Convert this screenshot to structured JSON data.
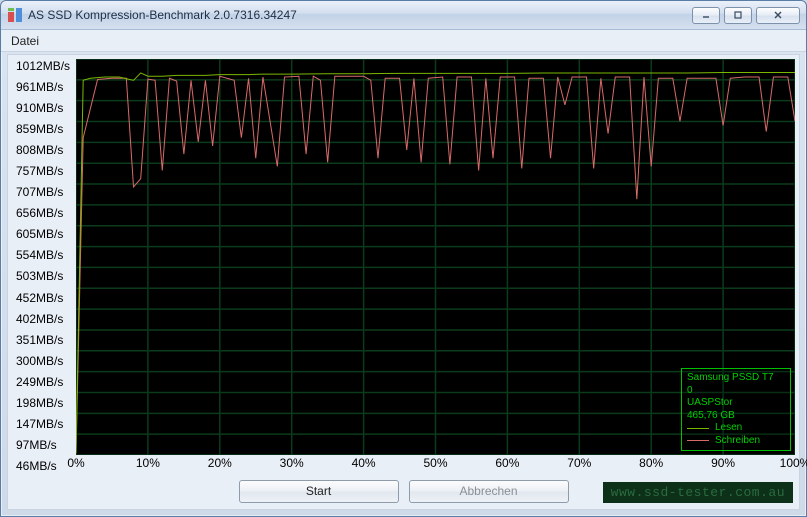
{
  "window": {
    "title": "AS SSD Kompression-Benchmark 2.0.7316.34247",
    "controls": {
      "minimize": "minimize",
      "maximize": "maximize",
      "close": "close"
    }
  },
  "menu": {
    "file": "Datei"
  },
  "chart": {
    "type": "line",
    "background_color": "#000000",
    "grid_color": "#0b3b1b",
    "axis_text_color": "#000000",
    "y_unit": "MB/s",
    "y_min": 46,
    "y_max": 1012,
    "y_ticks": [
      1012,
      961,
      910,
      859,
      808,
      757,
      707,
      656,
      605,
      554,
      503,
      452,
      402,
      351,
      300,
      249,
      198,
      147,
      97,
      46
    ],
    "x_min": 0,
    "x_max": 100,
    "x_ticks": [
      0,
      10,
      20,
      30,
      40,
      50,
      60,
      70,
      80,
      90,
      100
    ],
    "x_tick_suffix": "%",
    "series": {
      "read": {
        "label": "Lesen",
        "color": "#7ab800",
        "width": 1,
        "data": [
          [
            0,
            50
          ],
          [
            1,
            960
          ],
          [
            2,
            965
          ],
          [
            4,
            968
          ],
          [
            6,
            968
          ],
          [
            8,
            960
          ],
          [
            9,
            978
          ],
          [
            10,
            970
          ],
          [
            12,
            970
          ],
          [
            14,
            972
          ],
          [
            16,
            972
          ],
          [
            18,
            972
          ],
          [
            20,
            974
          ],
          [
            22,
            974
          ],
          [
            24,
            974
          ],
          [
            26,
            975
          ],
          [
            28,
            975
          ],
          [
            30,
            975
          ],
          [
            35,
            976
          ],
          [
            40,
            976
          ],
          [
            45,
            977
          ],
          [
            50,
            977
          ],
          [
            55,
            977
          ],
          [
            60,
            977
          ],
          [
            65,
            978
          ],
          [
            70,
            978
          ],
          [
            75,
            978
          ],
          [
            80,
            978
          ],
          [
            85,
            978
          ],
          [
            90,
            979
          ],
          [
            95,
            979
          ],
          [
            100,
            979
          ]
        ]
      },
      "write": {
        "label": "Schreiben",
        "color": "#d86a6a",
        "width": 1,
        "data": [
          [
            0,
            50
          ],
          [
            1,
            820
          ],
          [
            3,
            962
          ],
          [
            5,
            965
          ],
          [
            7,
            965
          ],
          [
            8,
            700
          ],
          [
            9,
            720
          ],
          [
            10,
            963
          ],
          [
            11,
            960
          ],
          [
            12,
            740
          ],
          [
            13,
            965
          ],
          [
            14,
            958
          ],
          [
            15,
            780
          ],
          [
            16,
            960
          ],
          [
            17,
            810
          ],
          [
            18,
            960
          ],
          [
            19,
            800
          ],
          [
            20,
            970
          ],
          [
            22,
            960
          ],
          [
            23,
            820
          ],
          [
            24,
            965
          ],
          [
            25,
            770
          ],
          [
            26,
            968
          ],
          [
            28,
            750
          ],
          [
            29,
            968
          ],
          [
            31,
            970
          ],
          [
            32,
            780
          ],
          [
            33,
            970
          ],
          [
            34,
            960
          ],
          [
            35,
            760
          ],
          [
            36,
            970
          ],
          [
            38,
            970
          ],
          [
            40,
            970
          ],
          [
            41,
            960
          ],
          [
            42,
            770
          ],
          [
            43,
            965
          ],
          [
            45,
            965
          ],
          [
            46,
            790
          ],
          [
            47,
            965
          ],
          [
            48,
            760
          ],
          [
            49,
            965
          ],
          [
            51,
            968
          ],
          [
            52,
            755
          ],
          [
            53,
            968
          ],
          [
            55,
            968
          ],
          [
            56,
            740
          ],
          [
            57,
            965
          ],
          [
            58,
            770
          ],
          [
            59,
            968
          ],
          [
            61,
            968
          ],
          [
            62,
            745
          ],
          [
            63,
            965
          ],
          [
            65,
            965
          ],
          [
            66,
            770
          ],
          [
            67,
            968
          ],
          [
            68,
            900
          ],
          [
            69,
            968
          ],
          [
            71,
            968
          ],
          [
            72,
            745
          ],
          [
            73,
            965
          ],
          [
            74,
            830
          ],
          [
            75,
            968
          ],
          [
            77,
            968
          ],
          [
            78,
            670
          ],
          [
            79,
            968
          ],
          [
            80,
            750
          ],
          [
            81,
            965
          ],
          [
            83,
            965
          ],
          [
            84,
            860
          ],
          [
            85,
            965
          ],
          [
            87,
            965
          ],
          [
            89,
            965
          ],
          [
            90,
            850
          ],
          [
            91,
            965
          ],
          [
            93,
            968
          ],
          [
            95,
            968
          ],
          [
            96,
            835
          ],
          [
            97,
            968
          ],
          [
            99,
            968
          ],
          [
            100,
            860
          ]
        ]
      }
    },
    "legend": {
      "border_color": "#00c000",
      "text_color": "#00d000",
      "device_name": "Samsung PSSD T7",
      "device_rev": "0",
      "driver": "UASPStor",
      "capacity": "465,76 GB"
    }
  },
  "buttons": {
    "start": "Start",
    "cancel": "Abbrechen"
  },
  "watermark": "www.ssd-tester.com.au"
}
